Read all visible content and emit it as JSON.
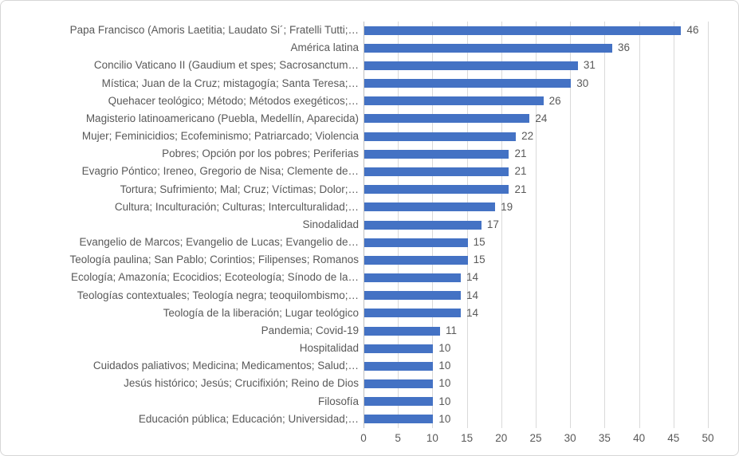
{
  "chart_data": {
    "type": "bar",
    "orientation": "horizontal",
    "title": "",
    "xlabel": "",
    "ylabel": "",
    "categories": [
      "Papa Francisco (Amoris Laetitia; Laudato Si´; Fratelli Tutti;…",
      "América latina",
      "Concilio Vaticano II (Gaudium et spes; Sacrosanctum…",
      "Mística; Juan de la Cruz; mistagogía; Santa Teresa;…",
      "Quehacer teológico; Método; Métodos exegéticos;…",
      "Magisterio latinoamericano (Puebla, Medellín, Aparecida)",
      "Mujer; Feminicidios; Ecofeminismo; Patriarcado; Violencia",
      "Pobres; Opción por los pobres; Periferias",
      "Evagrio Póntico; Ireneo, Gregorio de Nisa; Clemente de…",
      "Tortura; Sufrimiento; Mal; Cruz; Víctimas; Dolor;…",
      "Cultura; Inculturación; Culturas; Interculturalidad;…",
      "Sinodalidad",
      "Evangelio de Marcos; Evangelio de Lucas; Evangelio de…",
      "Teología paulina; San Pablo; Corintios; Filipenses; Romanos",
      "Ecología; Amazonía; Ecocidios; Ecoteología; Sínodo de la…",
      "Teologías contextuales; Teología negra; teoquilombismo;…",
      "Teología de la liberación; Lugar teológico",
      "Pandemia; Covid-19",
      "Hospitalidad",
      "Cuidados paliativos; Medicina; Medicamentos; Salud;…",
      "Jesús histórico; Jesús; Crucifixión; Reino de Dios",
      "Filosofía",
      "Educación pública; Educación; Universidad;…"
    ],
    "values": [
      46,
      36,
      31,
      30,
      26,
      24,
      22,
      21,
      21,
      21,
      19,
      17,
      15,
      15,
      14,
      14,
      14,
      11,
      10,
      10,
      10,
      10,
      10
    ],
    "data_labels": [
      46,
      36,
      31,
      30,
      26,
      24,
      22,
      21,
      21,
      21,
      19,
      17,
      15,
      15,
      14,
      14,
      14,
      11,
      10,
      10,
      10,
      10,
      10
    ],
    "xlim": [
      0,
      50
    ],
    "xticks": [
      0,
      5,
      10,
      15,
      20,
      25,
      30,
      35,
      40,
      45,
      50
    ],
    "grid": true,
    "legend": false,
    "colors": {
      "bar": "#4472C4",
      "gridline": "#D9D9D9",
      "axis_line": "#BFBFBF",
      "text": "#595959",
      "border": "#D6D6D6"
    }
  }
}
